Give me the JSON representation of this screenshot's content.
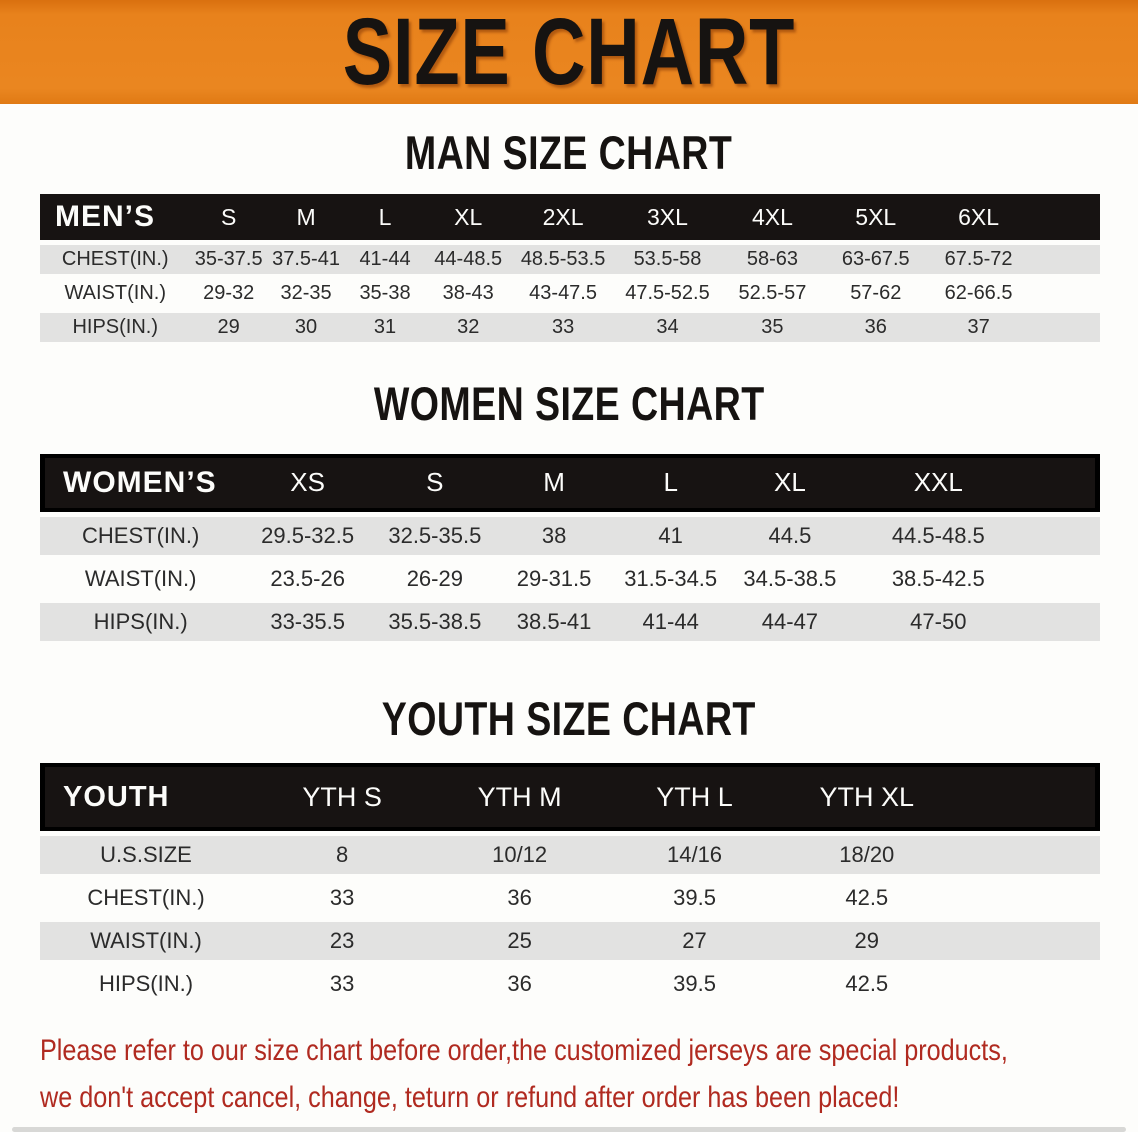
{
  "banner": {
    "title": "SIZE CHART"
  },
  "sections": {
    "men": {
      "title": "MAN SIZE CHART",
      "header_label": "MEN’S",
      "columns": [
        "S",
        "M",
        "L",
        "XL",
        "2XL",
        "3XL",
        "4XL",
        "5XL",
        "6XL"
      ],
      "rows": [
        {
          "label": "CHEST(IN.)",
          "values": [
            "35-37.5",
            "37.5-41",
            "41-44",
            "44-48.5",
            "48.5-53.5",
            "53.5-58",
            "58-63",
            "63-67.5",
            "67.5-72"
          ]
        },
        {
          "label": "WAIST(IN.)",
          "values": [
            "29-32",
            "32-35",
            "35-38",
            "38-43",
            "43-47.5",
            "47.5-52.5",
            "52.5-57",
            "57-62",
            "62-66.5"
          ]
        },
        {
          "label": "HIPS(IN.)",
          "values": [
            "29",
            "30",
            "31",
            "32",
            "33",
            "34",
            "35",
            "36",
            "37"
          ]
        }
      ]
    },
    "women": {
      "title": "WOMEN SIZE CHART",
      "header_label": "WOMEN’S",
      "columns": [
        "XS",
        "S",
        "M",
        "L",
        "XL",
        "XXL"
      ],
      "rows": [
        {
          "label": "CHEST(IN.)",
          "values": [
            "29.5-32.5",
            "32.5-35.5",
            "38",
            "41",
            "44.5",
            "44.5-48.5"
          ]
        },
        {
          "label": "WAIST(IN.)",
          "values": [
            "23.5-26",
            "26-29",
            "29-31.5",
            "31.5-34.5",
            "34.5-38.5",
            "38.5-42.5"
          ]
        },
        {
          "label": "HIPS(IN.)",
          "values": [
            "33-35.5",
            "35.5-38.5",
            "38.5-41",
            "41-44",
            "44-47",
            "47-50"
          ]
        }
      ]
    },
    "youth": {
      "title": "YOUTH SIZE CHART",
      "header_label": "YOUTH",
      "columns": [
        "YTH S",
        "YTH M",
        "YTH L",
        "YTH XL"
      ],
      "rows": [
        {
          "label": "U.S.SIZE",
          "values": [
            "8",
            "10/12",
            "14/16",
            "18/20"
          ]
        },
        {
          "label": "CHEST(IN.)",
          "values": [
            "33",
            "36",
            "39.5",
            "42.5"
          ]
        },
        {
          "label": "WAIST(IN.)",
          "values": [
            "23",
            "25",
            "27",
            "29"
          ]
        },
        {
          "label": "HIPS(IN.)",
          "values": [
            "33",
            "36",
            "39.5",
            "42.5"
          ]
        }
      ]
    }
  },
  "disclaimer": {
    "line1": "Please refer to our size chart before order,the customized jerseys are special products,",
    "line2": "we don't accept cancel, change, teturn or refund after order has been placed!"
  },
  "colors": {
    "banner_orange": "#E8821C",
    "header_black": "#171312",
    "row_gray": "#E2E2E1",
    "disclaimer_red": "#B02A20",
    "page_background": "#FDFDFB"
  }
}
